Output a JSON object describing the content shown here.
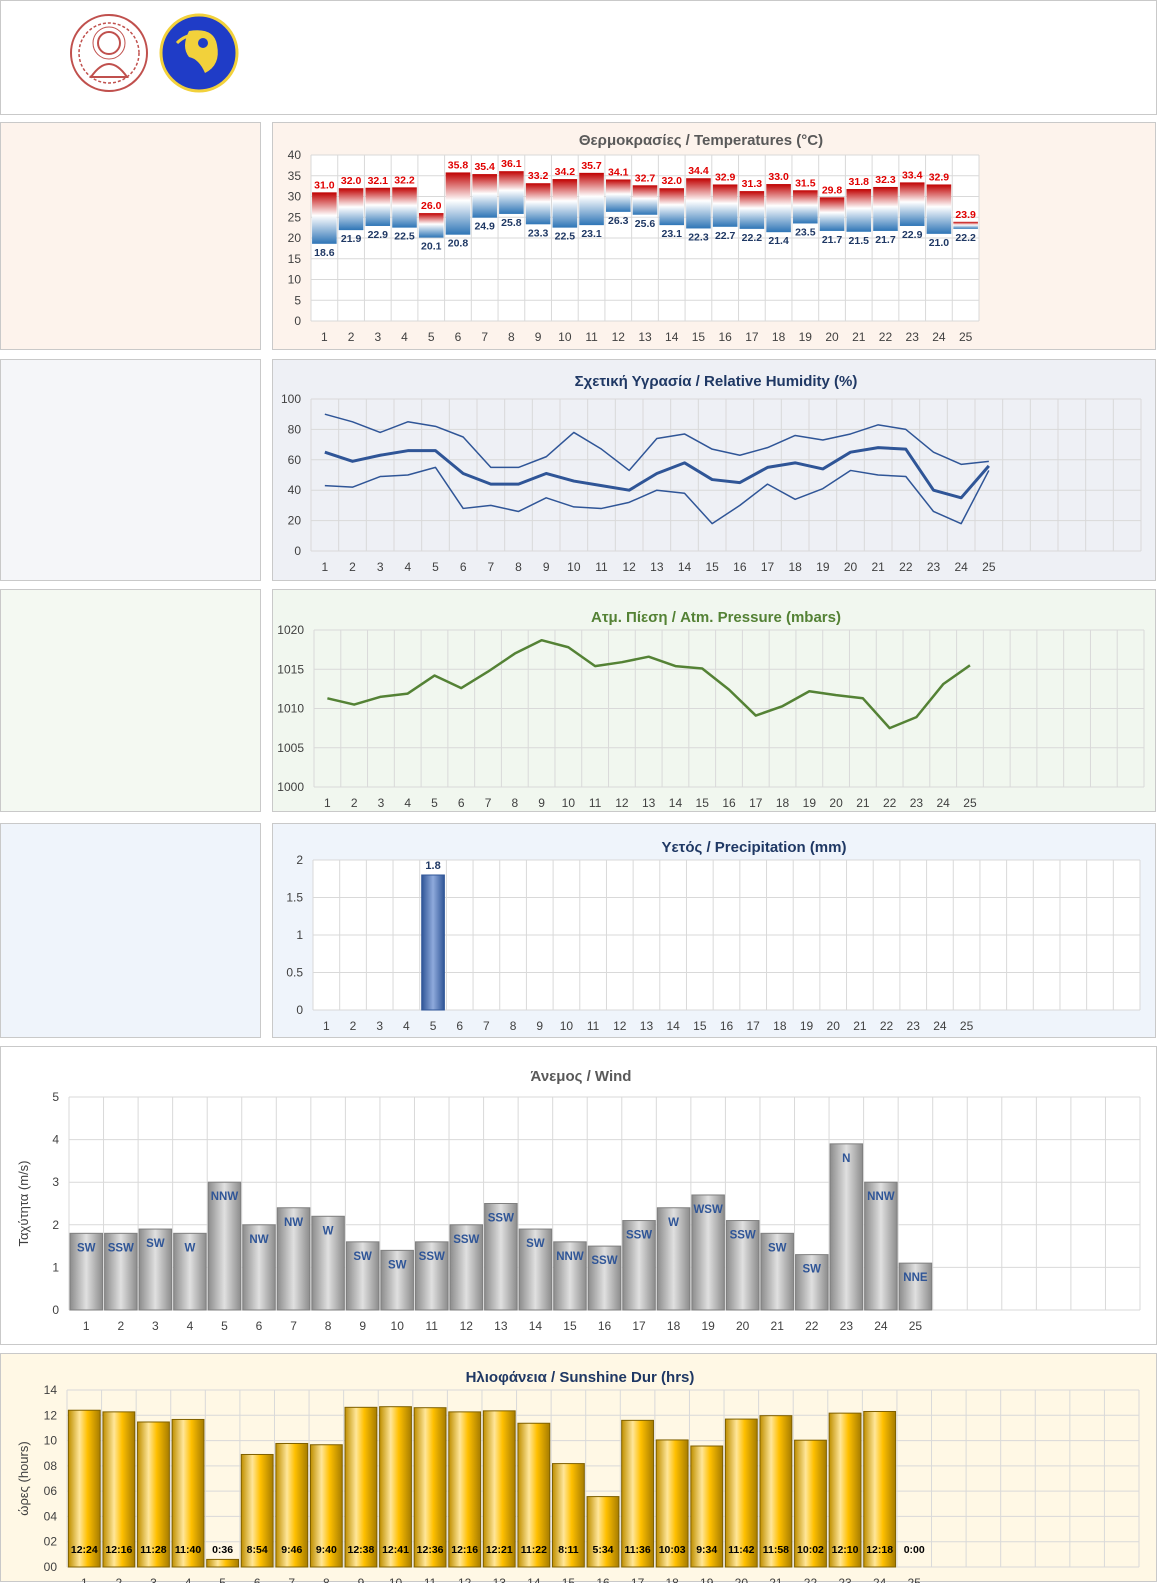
{
  "header": {
    "logos": [
      "auth-university-seal",
      "meteo-department-logo"
    ]
  },
  "colors": {
    "temp_panel_bg": "#fdf3ec",
    "humidity_panel_bg": "#eef0f5",
    "pressure_panel_bg": "#f1f7ef",
    "precip_panel_bg": "#eff4fb",
    "sunshine_panel_bg": "#fff8e5",
    "temp_max_label": "#e00000",
    "temp_min_label": "#1f3864",
    "humidity_line": "#2f5597",
    "pressure_line": "#548235",
    "precip_bar": "#4472c4",
    "wind_bar": "#bfbfbf",
    "sunshine_bar": "#ffc000"
  },
  "charts": [
    {
      "id": "temperature",
      "type": "bar",
      "title": "Θερμοκρασίες / Temperatures (°C)",
      "categories": [
        "1",
        "2",
        "3",
        "4",
        "5",
        "6",
        "7",
        "8",
        "9",
        "10",
        "11",
        "12",
        "13",
        "14",
        "15",
        "16",
        "17",
        "18",
        "19",
        "20",
        "21",
        "22",
        "23",
        "24",
        "25"
      ],
      "series": [
        {
          "name": "max",
          "values": [
            31.0,
            32.0,
            32.1,
            32.2,
            26.0,
            35.8,
            35.4,
            36.1,
            33.2,
            34.2,
            35.7,
            34.1,
            32.7,
            32.0,
            34.4,
            32.9,
            31.3,
            33.0,
            31.5,
            29.8,
            31.8,
            32.3,
            33.4,
            32.9,
            23.9
          ]
        },
        {
          "name": "min",
          "values": [
            18.6,
            21.9,
            22.9,
            22.5,
            20.1,
            20.8,
            24.9,
            25.8,
            23.3,
            22.5,
            23.1,
            26.3,
            25.6,
            23.1,
            22.3,
            22.7,
            22.2,
            21.4,
            23.5,
            21.7,
            21.5,
            21.7,
            22.9,
            21.0,
            22.2
          ]
        }
      ],
      "value_labels_max": [
        "31.0",
        "32.0",
        "32.1",
        "32.2",
        "26.0",
        "35.8",
        "35.4",
        "36.1",
        "33.2",
        "34.2",
        "35.7",
        "34.1",
        "32.7",
        "32.0",
        "34.4",
        "32.9",
        "31.3",
        "33.0",
        "31.5",
        "29.8",
        "31.8",
        "32.3",
        "33.4",
        "32.9",
        "23.9"
      ],
      "value_labels_min": [
        "18.6",
        "21.9",
        "22.9",
        "22.5",
        "20.1",
        "20.8",
        "24.9",
        "25.8",
        "23.3",
        "22.5",
        "23.1",
        "26.3",
        "25.6",
        "23.1",
        "22.3",
        "22.7",
        "22.2",
        "21.4",
        "23.5",
        "21.7",
        "21.5",
        "21.7",
        "22.9",
        "21.0",
        "22.2"
      ],
      "ylim": [
        0,
        40
      ],
      "yticks": [
        "0",
        "5",
        "10",
        "15",
        "20",
        "25",
        "30",
        "35",
        "40"
      ],
      "grid": true
    },
    {
      "id": "humidity",
      "type": "line",
      "title": "Σχετική Υγρασία / Relative Humidity (%)",
      "categories": [
        "1",
        "2",
        "3",
        "4",
        "5",
        "6",
        "7",
        "8",
        "9",
        "10",
        "11",
        "12",
        "13",
        "14",
        "15",
        "16",
        "17",
        "18",
        "19",
        "20",
        "21",
        "22",
        "23",
        "24",
        "25"
      ],
      "series": [
        {
          "name": "max",
          "values": [
            90,
            85,
            78,
            85,
            82,
            75,
            55,
            55,
            62,
            78,
            67,
            53,
            74,
            77,
            67,
            63,
            68,
            76,
            73,
            77,
            83,
            80,
            65,
            57,
            59
          ]
        },
        {
          "name": "mean",
          "values": [
            65,
            59,
            63,
            66,
            66,
            51,
            44,
            44,
            51,
            46,
            43,
            40,
            51,
            58,
            47,
            45,
            55,
            58,
            54,
            65,
            68,
            67,
            40,
            35,
            56
          ]
        },
        {
          "name": "min",
          "values": [
            43,
            42,
            49,
            50,
            55,
            28,
            30,
            26,
            35,
            29,
            28,
            32,
            40,
            38,
            18,
            30,
            44,
            34,
            41,
            53,
            50,
            49,
            26,
            18,
            53
          ]
        }
      ],
      "ylim": [
        0,
        100
      ],
      "yticks": [
        "0",
        "20",
        "40",
        "60",
        "80",
        "100"
      ],
      "grid": true
    },
    {
      "id": "pressure",
      "type": "line",
      "title": "Ατμ. Πίεση / Atm. Pressure (mbars)",
      "categories": [
        "1",
        "2",
        "3",
        "4",
        "5",
        "6",
        "7",
        "8",
        "9",
        "10",
        "11",
        "12",
        "13",
        "14",
        "15",
        "16",
        "17",
        "18",
        "19",
        "20",
        "21",
        "22",
        "23",
        "24",
        "25"
      ],
      "series": [
        {
          "name": "pressure",
          "values": [
            1011.3,
            1010.5,
            1011.5,
            1011.9,
            1014.2,
            1012.6,
            1014.7,
            1017.0,
            1018.7,
            1017.8,
            1015.4,
            1015.9,
            1016.6,
            1015.4,
            1015.1,
            1012.4,
            1009.1,
            1010.3,
            1012.2,
            1011.7,
            1011.3,
            1007.5,
            1008.9,
            1013.1,
            1015.5
          ]
        }
      ],
      "ylim": [
        1000,
        1020
      ],
      "yticks": [
        "1000",
        "1005",
        "1010",
        "1015",
        "1020"
      ],
      "grid": true
    },
    {
      "id": "precipitation",
      "type": "bar",
      "title": "Υετός / Precipitation (mm)",
      "categories": [
        "1",
        "2",
        "3",
        "4",
        "5",
        "6",
        "7",
        "8",
        "9",
        "10",
        "11",
        "12",
        "13",
        "14",
        "15",
        "16",
        "17",
        "18",
        "19",
        "20",
        "21",
        "22",
        "23",
        "24",
        "25"
      ],
      "series": [
        {
          "name": "precipitation",
          "values": [
            0,
            0,
            0,
            0,
            1.8,
            0,
            0,
            0,
            0,
            0,
            0,
            0,
            0,
            0,
            0,
            0,
            0,
            0,
            0,
            0,
            0,
            0,
            0,
            0,
            0
          ]
        }
      ],
      "value_labels": [
        "",
        "",
        "",
        "",
        "1.8",
        "",
        "",
        "",
        "",
        "",
        "",
        "",
        "",
        "",
        "",
        "",
        "",
        "",
        "",
        "",
        "",
        "",
        "",
        "",
        ""
      ],
      "ylim": [
        0,
        2
      ],
      "yticks": [
        "0",
        "0.5",
        "1",
        "1.5",
        "2"
      ],
      "grid": true
    },
    {
      "id": "wind",
      "type": "bar",
      "title": "Άνεμος / Wind",
      "ylabel": "Ταχύτητα  (m/s)",
      "categories": [
        "1",
        "2",
        "3",
        "4",
        "5",
        "6",
        "7",
        "8",
        "9",
        "10",
        "11",
        "12",
        "13",
        "14",
        "15",
        "16",
        "17",
        "18",
        "19",
        "20",
        "21",
        "22",
        "23",
        "24",
        "25"
      ],
      "series": [
        {
          "name": "speed",
          "values": [
            1.8,
            1.8,
            1.9,
            1.8,
            3.0,
            2.0,
            2.4,
            2.2,
            1.6,
            1.4,
            1.6,
            2.0,
            2.5,
            1.9,
            1.6,
            1.5,
            2.1,
            2.4,
            2.7,
            2.1,
            1.8,
            1.3,
            3.9,
            3.0,
            1.1
          ]
        }
      ],
      "value_labels": [
        "SW",
        "SSW",
        "SW",
        "W",
        "NNW",
        "NW",
        "NW",
        "W",
        "SW",
        "SW",
        "SSW",
        "SSW",
        "SSW",
        "SW",
        "NNW",
        "SSW",
        "SSW",
        "W",
        "WSW",
        "SSW",
        "SW",
        "SW",
        "N",
        "NNW",
        "NNE"
      ],
      "ylim": [
        0,
        5
      ],
      "yticks": [
        "0",
        "1",
        "2",
        "3",
        "4",
        "5"
      ],
      "grid": true
    },
    {
      "id": "sunshine",
      "type": "bar",
      "title": "Ηλιοφάνεια / Sunshine Dur (hrs)",
      "ylabel": "ώρες (hours)",
      "categories": [
        "1",
        "2",
        "3",
        "4",
        "5",
        "6",
        "7",
        "8",
        "9",
        "10",
        "11",
        "12",
        "13",
        "14",
        "15",
        "16",
        "17",
        "18",
        "19",
        "20",
        "21",
        "22",
        "23",
        "24",
        "25"
      ],
      "series": [
        {
          "name": "sunshine",
          "values": [
            12.4,
            12.27,
            11.47,
            11.67,
            0.6,
            8.9,
            9.77,
            9.67,
            12.63,
            12.68,
            12.6,
            12.27,
            12.35,
            11.37,
            8.18,
            5.57,
            11.6,
            10.05,
            9.57,
            11.7,
            11.97,
            10.03,
            12.17,
            12.3,
            0
          ]
        }
      ],
      "value_labels": [
        "12:24",
        "12:16",
        "11:28",
        "11:40",
        "0:36",
        "8:54",
        "9:46",
        "9:40",
        "12:38",
        "12:41",
        "12:36",
        "12:16",
        "12:21",
        "11:22",
        "8:11",
        "5:34",
        "11:36",
        "10:03",
        "9:34",
        "11:42",
        "11:58",
        "10:02",
        "12:10",
        "12:18",
        "0:00"
      ],
      "ylim": [
        0,
        14
      ],
      "yticks": [
        "00",
        "02",
        "04",
        "06",
        "08",
        "10",
        "12",
        "14"
      ],
      "grid": true
    }
  ]
}
